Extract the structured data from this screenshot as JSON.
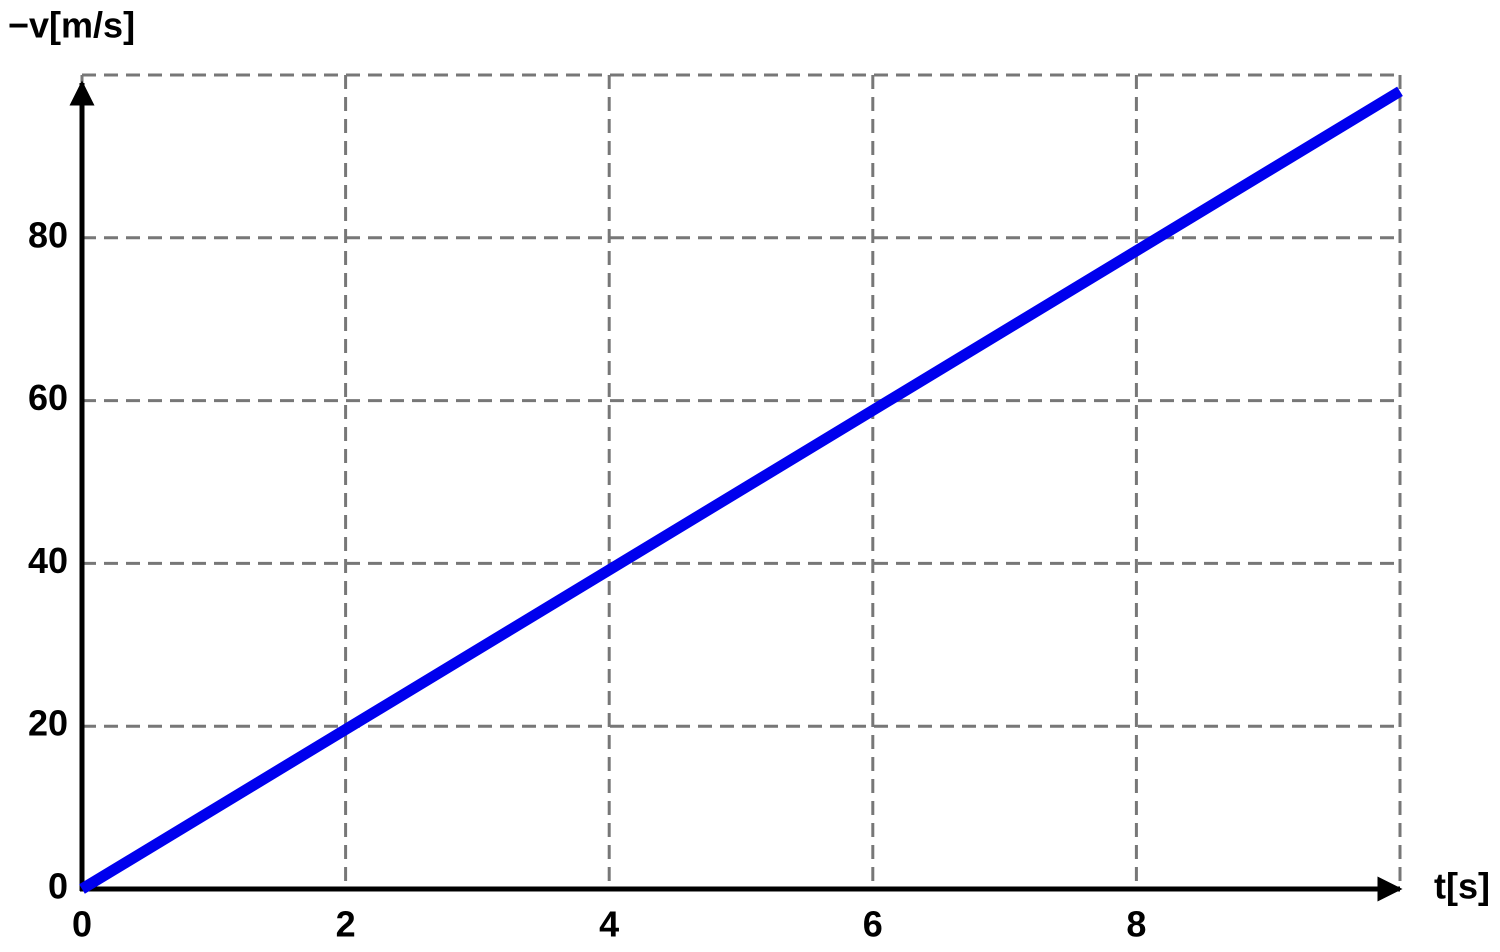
{
  "chart_data": {
    "type": "line",
    "ylabel": "−v[m/s]",
    "xlabel": "t[s]",
    "x": [
      0,
      10
    ],
    "series": [
      {
        "color": "#0000ee",
        "values": [
          0,
          98
        ]
      }
    ],
    "xlim": [
      0,
      10
    ],
    "ylim": [
      0,
      100
    ],
    "xticks": [
      0,
      2,
      4,
      6,
      8
    ],
    "yticks": [
      0,
      20,
      40,
      60,
      80
    ],
    "grid": true
  }
}
